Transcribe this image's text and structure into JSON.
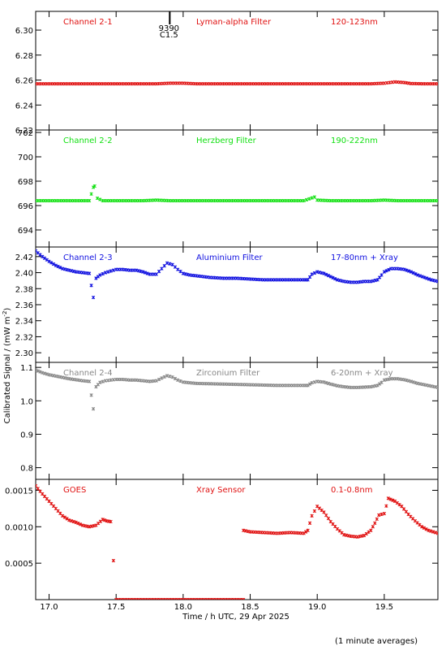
{
  "chart_data": {
    "type": "scatter",
    "xlabel": "Time / h UTC, 29 Apr 2025",
    "ylabel": "Calibrated Signal / (mW m",
    "ylabel_sup": "-2",
    "ylabel_close": ")",
    "note": "(1 minute averages)",
    "xlim": [
      16.9,
      19.9
    ],
    "x_ticks": [
      17.0,
      17.5,
      18.0,
      18.5,
      19.0,
      19.5
    ],
    "x_tick_labels": [
      "17.0",
      "17.5",
      "18.0",
      "18.5",
      "19.0",
      "19.5"
    ],
    "flare_marker": {
      "x": 17.9,
      "class": "C1.5",
      "number": "9390"
    },
    "panels": [
      {
        "channel": "Channel 2-1",
        "filter": "Lyman-alpha Filter",
        "band": "120-123nm",
        "color": "#e01010",
        "ylim": [
          6.22,
          6.315
        ],
        "y_ticks": [
          6.22,
          6.24,
          6.26,
          6.28,
          6.3
        ],
        "y_tick_labels": [
          "6.22",
          "6.24",
          "6.26",
          "6.28",
          "6.30"
        ],
        "points": [
          [
            16.9,
            6.257
          ],
          [
            17.0,
            6.257
          ],
          [
            17.1,
            6.257
          ],
          [
            17.2,
            6.257
          ],
          [
            17.3,
            6.257
          ],
          [
            17.4,
            6.257
          ],
          [
            17.5,
            6.257
          ],
          [
            17.6,
            6.257
          ],
          [
            17.7,
            6.257
          ],
          [
            17.8,
            6.257
          ],
          [
            17.9,
            6.2575
          ],
          [
            18.0,
            6.2575
          ],
          [
            18.1,
            6.257
          ],
          [
            18.2,
            6.257
          ],
          [
            18.3,
            6.257
          ],
          [
            18.4,
            6.257
          ],
          [
            18.5,
            6.257
          ],
          [
            18.6,
            6.257
          ],
          [
            18.7,
            6.257
          ],
          [
            18.8,
            6.257
          ],
          [
            18.9,
            6.257
          ],
          [
            19.0,
            6.257
          ],
          [
            19.1,
            6.257
          ],
          [
            19.2,
            6.257
          ],
          [
            19.3,
            6.257
          ],
          [
            19.4,
            6.257
          ],
          [
            19.5,
            6.2575
          ],
          [
            19.58,
            6.2585
          ],
          [
            19.65,
            6.258
          ],
          [
            19.7,
            6.2572
          ],
          [
            19.8,
            6.257
          ],
          [
            19.9,
            6.257
          ]
        ]
      },
      {
        "channel": "Channel 2-2",
        "filter": "Herzberg Filter",
        "band": "190-222nm",
        "color": "#10e010",
        "ylim": [
          692.6,
          702.2
        ],
        "y_ticks": [
          694,
          696,
          698,
          700,
          702
        ],
        "y_tick_labels": [
          "694",
          "696",
          "698",
          "700",
          "702"
        ],
        "points": [
          [
            16.9,
            696.4
          ],
          [
            17.0,
            696.4
          ],
          [
            17.1,
            696.4
          ],
          [
            17.2,
            696.4
          ],
          [
            17.3,
            696.4
          ],
          [
            17.33,
            697.5
          ],
          [
            17.34,
            697.6
          ],
          [
            17.36,
            696.6
          ],
          [
            17.4,
            696.4
          ],
          [
            17.5,
            696.4
          ],
          [
            17.6,
            696.4
          ],
          [
            17.7,
            696.4
          ],
          [
            17.8,
            696.45
          ],
          [
            17.9,
            696.4
          ],
          [
            18.0,
            696.4
          ],
          [
            18.1,
            696.4
          ],
          [
            18.2,
            696.4
          ],
          [
            18.3,
            696.4
          ],
          [
            18.4,
            696.4
          ],
          [
            18.5,
            696.4
          ],
          [
            18.6,
            696.4
          ],
          [
            18.7,
            696.4
          ],
          [
            18.8,
            696.4
          ],
          [
            18.9,
            696.4
          ],
          [
            18.98,
            696.7
          ],
          [
            19.0,
            696.45
          ],
          [
            19.1,
            696.4
          ],
          [
            19.2,
            696.4
          ],
          [
            19.3,
            696.4
          ],
          [
            19.4,
            696.4
          ],
          [
            19.5,
            696.45
          ],
          [
            19.6,
            696.4
          ],
          [
            19.7,
            696.4
          ],
          [
            19.8,
            696.4
          ],
          [
            19.9,
            696.4
          ]
        ]
      },
      {
        "channel": "Channel 2-3",
        "filter": "Aluminium Filter",
        "band": "17-80nm + Xray",
        "color": "#1010e0",
        "ylim": [
          2.288,
          2.432
        ],
        "y_ticks": [
          2.3,
          2.32,
          2.34,
          2.36,
          2.38,
          2.4,
          2.42
        ],
        "y_tick_labels": [
          "2.30",
          "2.32",
          "2.34",
          "2.36",
          "2.38",
          "2.40",
          "2.42"
        ],
        "points": [
          [
            16.9,
            2.427
          ],
          [
            16.95,
            2.42
          ],
          [
            17.0,
            2.414
          ],
          [
            17.05,
            2.409
          ],
          [
            17.1,
            2.405
          ],
          [
            17.15,
            2.403
          ],
          [
            17.2,
            2.401
          ],
          [
            17.25,
            2.4
          ],
          [
            17.3,
            2.399
          ],
          [
            17.33,
            2.369
          ],
          [
            17.35,
            2.393
          ],
          [
            17.38,
            2.397
          ],
          [
            17.42,
            2.4
          ],
          [
            17.46,
            2.402
          ],
          [
            17.5,
            2.404
          ],
          [
            17.55,
            2.404
          ],
          [
            17.6,
            2.403
          ],
          [
            17.65,
            2.403
          ],
          [
            17.7,
            2.401
          ],
          [
            17.75,
            2.398
          ],
          [
            17.8,
            2.398
          ],
          [
            17.84,
            2.405
          ],
          [
            17.88,
            2.412
          ],
          [
            17.92,
            2.41
          ],
          [
            17.96,
            2.404
          ],
          [
            18.0,
            2.399
          ],
          [
            18.05,
            2.397
          ],
          [
            18.1,
            2.396
          ],
          [
            18.15,
            2.395
          ],
          [
            18.2,
            2.394
          ],
          [
            18.3,
            2.393
          ],
          [
            18.4,
            2.393
          ],
          [
            18.5,
            2.392
          ],
          [
            18.6,
            2.391
          ],
          [
            18.7,
            2.391
          ],
          [
            18.8,
            2.391
          ],
          [
            18.9,
            2.391
          ],
          [
            18.93,
            2.391
          ],
          [
            18.96,
            2.398
          ],
          [
            19.0,
            2.401
          ],
          [
            19.05,
            2.399
          ],
          [
            19.1,
            2.395
          ],
          [
            19.15,
            2.391
          ],
          [
            19.2,
            2.389
          ],
          [
            19.25,
            2.388
          ],
          [
            19.3,
            2.388
          ],
          [
            19.35,
            2.389
          ],
          [
            19.4,
            2.389
          ],
          [
            19.45,
            2.391
          ],
          [
            19.48,
            2.397
          ],
          [
            19.5,
            2.401
          ],
          [
            19.55,
            2.405
          ],
          [
            19.6,
            2.405
          ],
          [
            19.65,
            2.404
          ],
          [
            19.7,
            2.401
          ],
          [
            19.75,
            2.397
          ],
          [
            19.8,
            2.394
          ],
          [
            19.85,
            2.391
          ],
          [
            19.9,
            2.389
          ]
        ]
      },
      {
        "channel": "Channel 2-4",
        "filter": "Zirconium Filter",
        "band": "6-20nm + Xray",
        "color": "#888888",
        "ylim": [
          0.765,
          1.115
        ],
        "y_ticks": [
          0.8,
          0.9,
          1.0,
          1.1
        ],
        "y_tick_labels": [
          "0.8",
          "0.9",
          "1.0",
          "1.1"
        ],
        "points": [
          [
            16.9,
            1.092
          ],
          [
            16.95,
            1.084
          ],
          [
            17.0,
            1.078
          ],
          [
            17.05,
            1.074
          ],
          [
            17.1,
            1.07
          ],
          [
            17.15,
            1.066
          ],
          [
            17.2,
            1.063
          ],
          [
            17.25,
            1.06
          ],
          [
            17.3,
            1.058
          ],
          [
            17.33,
            0.976
          ],
          [
            17.35,
            1.042
          ],
          [
            17.38,
            1.055
          ],
          [
            17.42,
            1.06
          ],
          [
            17.46,
            1.062
          ],
          [
            17.5,
            1.064
          ],
          [
            17.55,
            1.064
          ],
          [
            17.6,
            1.062
          ],
          [
            17.65,
            1.062
          ],
          [
            17.7,
            1.06
          ],
          [
            17.75,
            1.058
          ],
          [
            17.8,
            1.06
          ],
          [
            17.84,
            1.068
          ],
          [
            17.88,
            1.075
          ],
          [
            17.92,
            1.071
          ],
          [
            17.96,
            1.062
          ],
          [
            18.0,
            1.056
          ],
          [
            18.05,
            1.054
          ],
          [
            18.1,
            1.052
          ],
          [
            18.2,
            1.051
          ],
          [
            18.3,
            1.05
          ],
          [
            18.4,
            1.049
          ],
          [
            18.5,
            1.048
          ],
          [
            18.6,
            1.047
          ],
          [
            18.7,
            1.046
          ],
          [
            18.8,
            1.046
          ],
          [
            18.9,
            1.046
          ],
          [
            18.93,
            1.046
          ],
          [
            18.96,
            1.054
          ],
          [
            19.0,
            1.058
          ],
          [
            19.05,
            1.056
          ],
          [
            19.1,
            1.05
          ],
          [
            19.15,
            1.045
          ],
          [
            19.2,
            1.042
          ],
          [
            19.25,
            1.04
          ],
          [
            19.3,
            1.04
          ],
          [
            19.35,
            1.041
          ],
          [
            19.4,
            1.042
          ],
          [
            19.45,
            1.046
          ],
          [
            19.48,
            1.055
          ],
          [
            19.5,
            1.062
          ],
          [
            19.55,
            1.066
          ],
          [
            19.6,
            1.066
          ],
          [
            19.65,
            1.063
          ],
          [
            19.7,
            1.058
          ],
          [
            19.75,
            1.052
          ],
          [
            19.8,
            1.048
          ],
          [
            19.85,
            1.044
          ],
          [
            19.9,
            1.04
          ]
        ]
      },
      {
        "channel": "GOES",
        "filter": "Xray Sensor",
        "band": "0.1-0.8nm",
        "color": "#e01010",
        "ylim": [
          0.0,
          0.00165
        ],
        "y_ticks": [
          0.0005,
          0.001,
          0.0015
        ],
        "y_tick_labels": [
          "0.0005",
          "0.0010",
          "0.0015"
        ],
        "points": [
          [
            16.9,
            0.00156
          ],
          [
            16.95,
            0.00145
          ],
          [
            17.0,
            0.00135
          ],
          [
            17.05,
            0.00125
          ],
          [
            17.1,
            0.00115
          ],
          [
            17.15,
            0.00109
          ],
          [
            17.2,
            0.00106
          ],
          [
            17.25,
            0.00102
          ],
          [
            17.3,
            0.001
          ],
          [
            17.35,
            0.00102
          ],
          [
            17.4,
            0.0011
          ],
          [
            17.43,
            0.00108
          ],
          [
            17.46,
            0.00107
          ],
          [
            17.5,
            0.0
          ],
          [
            17.6,
            0.0
          ],
          [
            17.7,
            0.0
          ],
          [
            17.8,
            0.0
          ],
          [
            17.9,
            0.0
          ],
          [
            18.0,
            0.0
          ],
          [
            18.1,
            0.0
          ],
          [
            18.2,
            0.0
          ],
          [
            18.3,
            0.0
          ],
          [
            18.4,
            0.0
          ],
          [
            18.45,
            0.0
          ],
          [
            18.45,
            0.00095
          ],
          [
            18.5,
            0.00093
          ],
          [
            18.6,
            0.00092
          ],
          [
            18.7,
            0.00091
          ],
          [
            18.8,
            0.00092
          ],
          [
            18.9,
            0.00091
          ],
          [
            18.93,
            0.00095
          ],
          [
            18.96,
            0.00115
          ],
          [
            19.0,
            0.00128
          ],
          [
            19.05,
            0.0012
          ],
          [
            19.1,
            0.00107
          ],
          [
            19.15,
            0.00097
          ],
          [
            19.2,
            0.00089
          ],
          [
            19.25,
            0.00087
          ],
          [
            19.3,
            0.00086
          ],
          [
            19.35,
            0.00088
          ],
          [
            19.4,
            0.00095
          ],
          [
            19.43,
            0.00105
          ],
          [
            19.46,
            0.00116
          ],
          [
            19.5,
            0.00118
          ],
          [
            19.53,
            0.00139
          ],
          [
            19.58,
            0.00135
          ],
          [
            19.63,
            0.00128
          ],
          [
            19.68,
            0.00117
          ],
          [
            19.73,
            0.00108
          ],
          [
            19.78,
            0.001
          ],
          [
            19.83,
            0.00095
          ],
          [
            19.9,
            0.00091
          ]
        ]
      }
    ]
  }
}
